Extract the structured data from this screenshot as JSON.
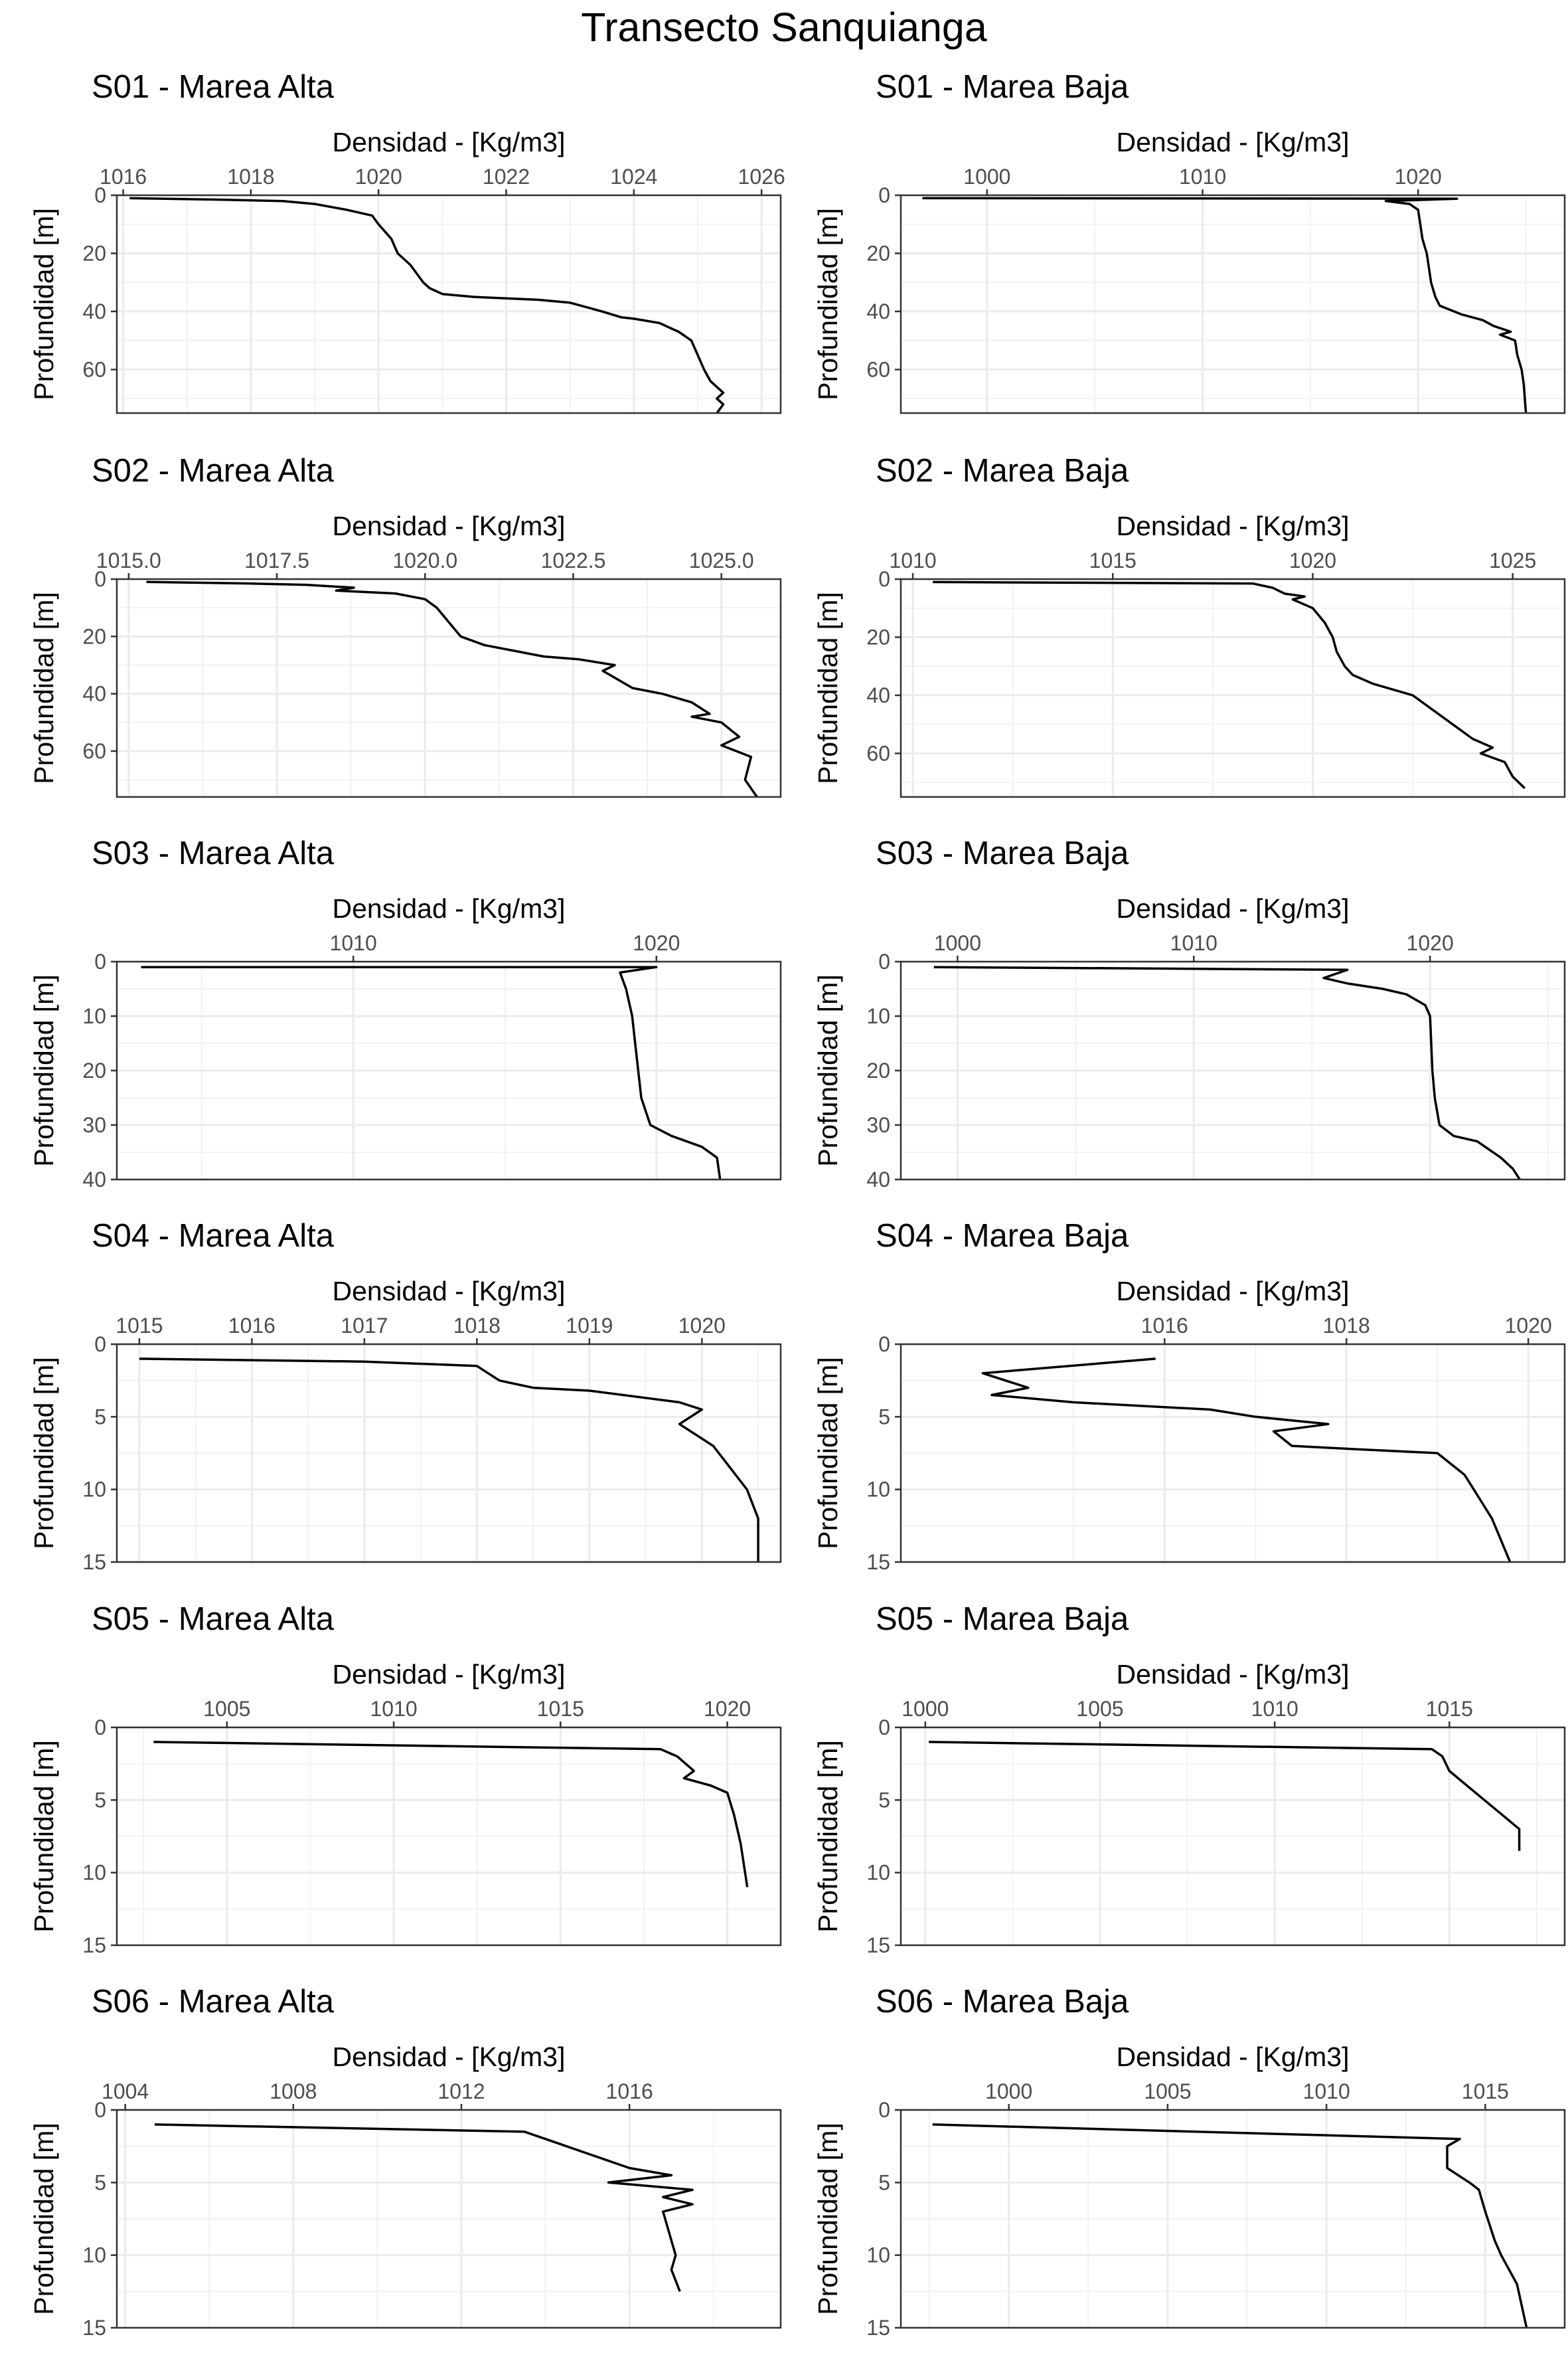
{
  "page": {
    "title": "Transecto Sanquianga"
  },
  "chart_data": [
    {
      "type": "line",
      "title": "S01 - Marea Alta",
      "xlabel": "Densidad - [Kg/m3]",
      "ylabel": "Profundidad [m]",
      "xlim": [
        1015.9,
        1026.3
      ],
      "xticks": [
        1016,
        1018,
        1020,
        1022,
        1024,
        1026
      ],
      "ylim": [
        0,
        75
      ],
      "yticks": [
        0,
        20,
        40,
        60
      ],
      "grid": true,
      "series": [
        {
          "x": [
            1016.1,
            1017.5,
            1018.5,
            1019.0,
            1019.5,
            1019.9,
            1020.0,
            1020.2,
            1020.3,
            1020.5,
            1020.6,
            1020.7,
            1020.8,
            1021.0,
            1021.5,
            1022.0,
            1022.5,
            1023.0,
            1023.5,
            1023.8,
            1024.0,
            1024.4,
            1024.7,
            1024.9,
            1025.0,
            1025.1,
            1025.2,
            1025.3,
            1025.4,
            1025.3,
            1025.4,
            1025.3
          ],
          "y": [
            1,
            1.5,
            2,
            3,
            5,
            7,
            10,
            15,
            20,
            24,
            27,
            30,
            32,
            34,
            35,
            35.5,
            36,
            37,
            40,
            42,
            42.5,
            44,
            47,
            50,
            55,
            60,
            64,
            66,
            68,
            70,
            72,
            75
          ]
        }
      ]
    },
    {
      "type": "line",
      "title": "S01 - Marea Baja",
      "xlabel": "Densidad - [Kg/m3]",
      "ylabel": "Profundidad [m]",
      "xlim": [
        996.0,
        1026.8
      ],
      "xticks": [
        1000,
        1010,
        1020
      ],
      "ylim": [
        0,
        75
      ],
      "yticks": [
        0,
        20,
        40,
        60
      ],
      "grid": true,
      "series": [
        {
          "x": [
            997.0,
            1021.8,
            1018.5,
            1019.6,
            1020.0,
            1020.1,
            1020.2,
            1020.4,
            1020.5,
            1020.6,
            1020.8,
            1021.0,
            1022.0,
            1023.0,
            1023.5,
            1024.3,
            1023.8,
            1024.5,
            1024.6,
            1024.8,
            1024.9,
            1025.0
          ],
          "y": [
            1,
            1.2,
            2,
            3,
            5,
            10,
            15,
            20,
            25,
            30,
            35,
            38,
            41,
            43,
            45,
            47,
            48,
            50,
            55,
            60,
            65,
            75
          ]
        }
      ]
    },
    {
      "type": "line",
      "title": "S02 - Marea Alta",
      "xlabel": "Densidad - [Kg/m3]",
      "ylabel": "Profundidad [m]",
      "xlim": [
        1014.8,
        1026.0
      ],
      "xticks": [
        1015.0,
        1017.5,
        1020.0,
        1022.5,
        1025.0
      ],
      "xticklabels": [
        "1015.0",
        "1017.5",
        "1020.0",
        "1022.5",
        "1025.0"
      ],
      "ylim": [
        0,
        76
      ],
      "yticks": [
        0,
        20,
        40,
        60
      ],
      "grid": true,
      "series": [
        {
          "x": [
            1015.3,
            1017.0,
            1018.0,
            1018.8,
            1018.5,
            1019.5,
            1020.0,
            1020.2,
            1020.4,
            1020.6,
            1021.0,
            1021.5,
            1022.0,
            1022.6,
            1023.2,
            1023.0,
            1023.5,
            1024.0,
            1024.5,
            1024.8,
            1024.5,
            1025.0,
            1025.3,
            1025.0,
            1025.5,
            1025.4,
            1025.6
          ],
          "y": [
            1,
            1.5,
            2,
            3,
            4,
            5,
            7,
            10,
            15,
            20,
            23,
            25,
            27,
            28,
            30,
            32,
            38,
            40,
            43,
            47,
            48,
            50,
            55,
            58,
            62,
            70,
            76
          ]
        }
      ]
    },
    {
      "type": "line",
      "title": "S02 - Marea Baja",
      "xlabel": "Densidad - [Kg/m3]",
      "ylabel": "Profundidad [m]",
      "xlim": [
        1009.7,
        1026.3
      ],
      "xticks": [
        1010,
        1015,
        1020,
        1025
      ],
      "ylim": [
        0,
        75
      ],
      "yticks": [
        0,
        20,
        40,
        60
      ],
      "grid": true,
      "series": [
        {
          "x": [
            1010.5,
            1018.5,
            1019.0,
            1019.3,
            1019.8,
            1019.5,
            1020.0,
            1020.3,
            1020.5,
            1020.6,
            1020.8,
            1021.0,
            1021.5,
            1022.0,
            1022.5,
            1023.0,
            1023.5,
            1024.0,
            1024.5,
            1024.2,
            1024.8,
            1025.0,
            1025.3
          ],
          "y": [
            1,
            1.5,
            3,
            5,
            6,
            7,
            10,
            15,
            20,
            25,
            30,
            33,
            36,
            38,
            40,
            45,
            50,
            55,
            58,
            60,
            63,
            68,
            72
          ]
        }
      ]
    },
    {
      "type": "line",
      "title": "S03 - Marea Alta",
      "xlabel": "Densidad - [Kg/m3]",
      "ylabel": "Profundidad [m]",
      "xlim": [
        1002.2,
        1024.1
      ],
      "xticks": [
        1010,
        1020
      ],
      "ylim": [
        0,
        40
      ],
      "yticks": [
        0,
        10,
        20,
        30,
        40
      ],
      "grid": true,
      "series": [
        {
          "x": [
            1003.0,
            1020.0,
            1018.8,
            1019.0,
            1019.2,
            1019.3,
            1019.4,
            1019.5,
            1019.8,
            1020.5,
            1021.5,
            1022.0,
            1022.1
          ],
          "y": [
            1,
            1,
            2,
            5,
            10,
            15,
            20,
            25,
            30,
            32,
            34,
            36,
            40
          ]
        }
      ]
    },
    {
      "type": "line",
      "title": "S03 - Marea Baja",
      "xlabel": "Densidad - [Kg/m3]",
      "ylabel": "Profundidad [m]",
      "xlim": [
        997.6,
        1025.7
      ],
      "xticks": [
        1000,
        1010,
        1020
      ],
      "ylim": [
        0,
        40
      ],
      "yticks": [
        0,
        10,
        20,
        30,
        40
      ],
      "grid": true,
      "series": [
        {
          "x": [
            999.0,
            1016.5,
            1015.5,
            1016.5,
            1018.0,
            1019.0,
            1019.8,
            1020.0,
            1020.1,
            1020.2,
            1020.4,
            1021.0,
            1022.0,
            1023.0,
            1023.5,
            1023.8
          ],
          "y": [
            1,
            1.5,
            3,
            4,
            5,
            6,
            8,
            10,
            20,
            25,
            30,
            32,
            33,
            36,
            38,
            40
          ]
        }
      ]
    },
    {
      "type": "line",
      "title": "S04 - Marea Alta",
      "xlabel": "Densidad - [Kg/m3]",
      "ylabel": "Profundidad [m]",
      "xlim": [
        1014.8,
        1020.7
      ],
      "xticks": [
        1015,
        1016,
        1017,
        1018,
        1019,
        1020
      ],
      "ylim": [
        0,
        15
      ],
      "yticks": [
        0,
        5,
        10,
        15
      ],
      "grid": true,
      "series": [
        {
          "x": [
            1015.0,
            1017.0,
            1018.0,
            1018.2,
            1018.5,
            1019.0,
            1019.8,
            1020.0,
            1019.8,
            1020.1,
            1020.2,
            1020.3,
            1020.4,
            1020.5,
            1020.5
          ],
          "y": [
            1,
            1.2,
            1.5,
            2.5,
            3,
            3.2,
            4,
            4.5,
            5.5,
            7,
            8,
            9,
            10,
            12,
            15
          ]
        }
      ]
    },
    {
      "type": "line",
      "title": "S04 - Marea Baja",
      "xlabel": "Densidad - [Kg/m3]",
      "ylabel": "Profundidad [m]",
      "xlim": [
        1013.1,
        1020.4
      ],
      "xticks": [
        1016,
        1018,
        1020
      ],
      "ylim": [
        0,
        15
      ],
      "yticks": [
        0,
        5,
        10,
        15
      ],
      "grid": true,
      "series": [
        {
          "x": [
            1015.9,
            1014.0,
            1014.5,
            1014.1,
            1015.0,
            1016.5,
            1017.0,
            1017.8,
            1017.2,
            1017.4,
            1018.0,
            1019.0,
            1019.3,
            1019.5,
            1019.6,
            1019.8
          ],
          "y": [
            1,
            2,
            3,
            3.5,
            4,
            4.5,
            5,
            5.5,
            6,
            7,
            7.2,
            7.5,
            9,
            11,
            12,
            15
          ]
        }
      ]
    },
    {
      "type": "line",
      "title": "S05 - Marea Alta",
      "xlabel": "Densidad - [Kg/m3]",
      "ylabel": "Profundidad [m]",
      "xlim": [
        1001.7,
        1021.6
      ],
      "xticks": [
        1005,
        1010,
        1015,
        1020
      ],
      "ylim": [
        0,
        15
      ],
      "yticks": [
        0,
        5,
        10,
        15
      ],
      "grid": true,
      "series": [
        {
          "x": [
            1002.8,
            1018.0,
            1018.5,
            1019.0,
            1018.7,
            1019.5,
            1020.0,
            1020.2,
            1020.4,
            1020.6
          ],
          "y": [
            1,
            1.5,
            2,
            3,
            3.5,
            4,
            4.5,
            6,
            8,
            11
          ]
        }
      ]
    },
    {
      "type": "line",
      "title": "S05 - Marea Baja",
      "xlabel": "Densidad - [Kg/m3]",
      "ylabel": "Profundidad [m]",
      "xlim": [
        999.3,
        1018.3
      ],
      "xticks": [
        1000,
        1005,
        1010,
        1015
      ],
      "ylim": [
        0,
        15
      ],
      "yticks": [
        0,
        5,
        10,
        15
      ],
      "grid": true,
      "series": [
        {
          "x": [
            1000.1,
            1014.5,
            1014.8,
            1015.0,
            1015.5,
            1016.0,
            1016.5,
            1017.0,
            1017.0
          ],
          "y": [
            1,
            1.5,
            2,
            3,
            4,
            5,
            6,
            7,
            8.5
          ]
        }
      ]
    },
    {
      "type": "line",
      "title": "S06 - Marea Alta",
      "xlabel": "Densidad - [Kg/m3]",
      "ylabel": "Profundidad [m]",
      "xlim": [
        1003.8,
        1019.6
      ],
      "xticks": [
        1004,
        1008,
        1012,
        1016
      ],
      "ylim": [
        0,
        15
      ],
      "yticks": [
        0,
        5,
        10,
        15
      ],
      "grid": true,
      "series": [
        {
          "x": [
            1004.7,
            1013.5,
            1014.0,
            1015.0,
            1016.0,
            1017.0,
            1015.5,
            1017.5,
            1016.8,
            1017.5,
            1016.8,
            1016.9,
            1017.0,
            1017.1,
            1017.0,
            1017.2
          ],
          "y": [
            1,
            1.5,
            2,
            3,
            4,
            4.5,
            5,
            5.5,
            6,
            6.5,
            7,
            8,
            9,
            10,
            11,
            12.5
          ]
        }
      ]
    },
    {
      "type": "line",
      "title": "S06 - Marea Baja",
      "xlabel": "Densidad - [Kg/m3]",
      "ylabel": "Profundidad [m]",
      "xlim": [
        996.6,
        1017.5
      ],
      "xticks": [
        1000,
        1005,
        1010,
        1015
      ],
      "ylim": [
        0,
        15
      ],
      "yticks": [
        0,
        5,
        10,
        15
      ],
      "grid": true,
      "series": [
        {
          "x": [
            997.6,
            1014.2,
            1013.8,
            1013.8,
            1014.5,
            1014.8,
            1015.0,
            1015.3,
            1015.5,
            1016.0,
            1016.3
          ],
          "y": [
            1,
            2,
            2.5,
            4,
            5,
            5.5,
            7,
            9,
            10,
            12,
            15
          ]
        }
      ]
    }
  ]
}
